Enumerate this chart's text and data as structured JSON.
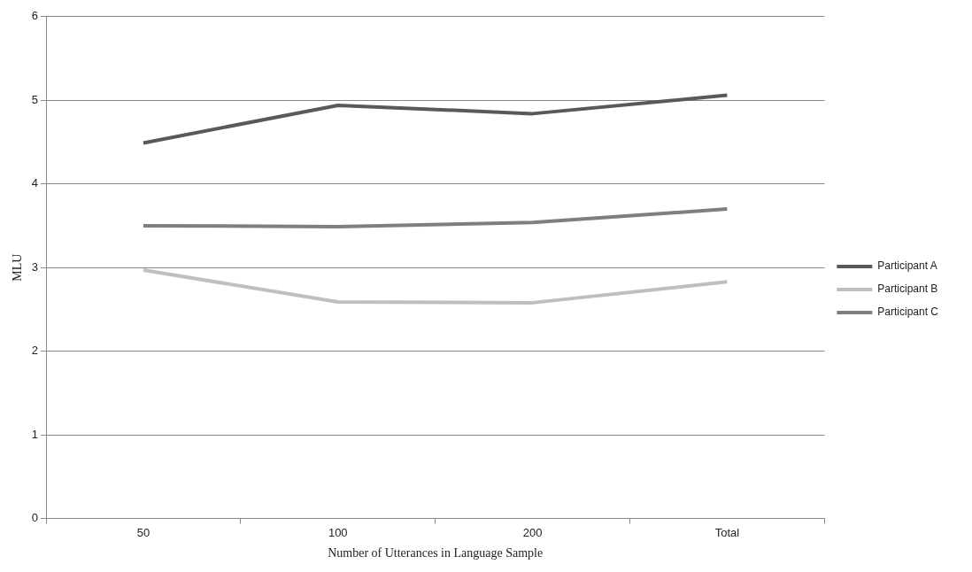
{
  "chart_data": {
    "type": "line",
    "xlabel": "Number of Utterances in Language Sample",
    "ylabel": "MLU",
    "categories": [
      "50",
      "100",
      "200",
      "Total"
    ],
    "series": [
      {
        "name": "Participant A",
        "color": "#595959",
        "values": [
          4.49,
          4.94,
          4.84,
          5.06
        ]
      },
      {
        "name": "Participant B",
        "color": "#bfbfbf",
        "values": [
          2.97,
          2.59,
          2.58,
          2.83
        ]
      },
      {
        "name": "Participant C",
        "color": "#7f7f7f",
        "values": [
          3.5,
          3.49,
          3.54,
          3.7
        ]
      }
    ],
    "ylim": [
      0,
      6
    ],
    "yticks": [
      0,
      1,
      2,
      3,
      4,
      5,
      6
    ],
    "grid": "y",
    "legend": "right",
    "marker": "none",
    "line_style": "solid"
  }
}
